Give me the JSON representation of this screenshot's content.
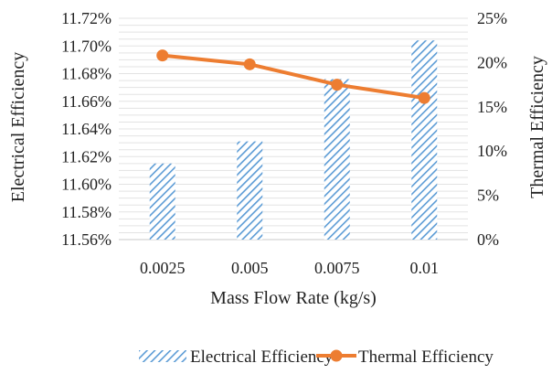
{
  "chart_data": {
    "type": "bar+line",
    "xlabel": "Mass Flow Rate (kg/s)",
    "categories": [
      "0.0025",
      "0.005",
      "0.0075",
      "0.01"
    ],
    "series": [
      {
        "name": "Electrical Efficiency",
        "type": "bar",
        "axis": "left",
        "values": [
          11.615,
          11.631,
          11.676,
          11.704
        ],
        "color": "#5B9BD5",
        "pattern": "diagonal-hatch"
      },
      {
        "name": "Thermal Efficiency",
        "type": "line",
        "axis": "right",
        "values": [
          20.8,
          19.8,
          17.5,
          16.0
        ],
        "color": "#ED7D31",
        "markers": true
      }
    ],
    "y_left": {
      "label": "Electrical Efficiency",
      "lim": [
        11.56,
        11.72
      ],
      "ticks": [
        "11.56%",
        "11.58%",
        "11.60%",
        "11.62%",
        "11.64%",
        "11.66%",
        "11.68%",
        "11.70%",
        "11.72%"
      ]
    },
    "y_right": {
      "label": "Thermal Efficiency",
      "lim": [
        0,
        25
      ],
      "ticks": [
        "0%",
        "5%",
        "10%",
        "15%",
        "20%",
        "25%"
      ]
    },
    "grid": true,
    "legend": "bottom"
  }
}
